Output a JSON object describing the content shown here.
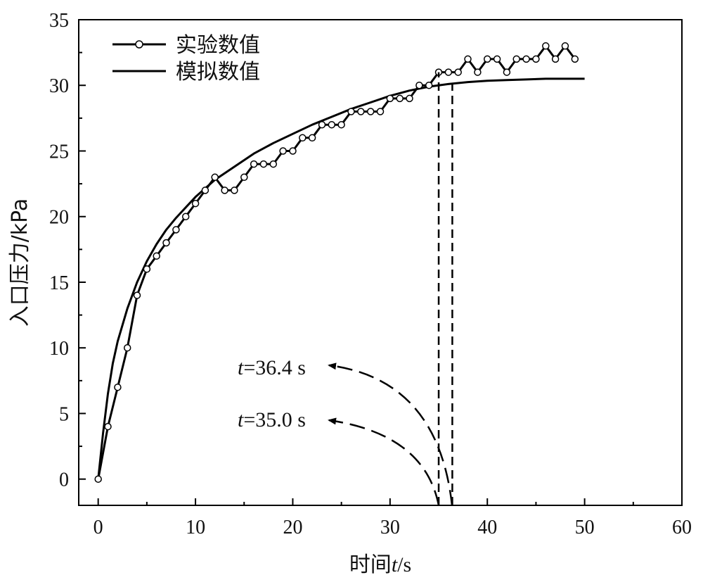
{
  "chart_data": {
    "type": "line",
    "xlabel_prefix": "时间",
    "xlabel_var": "t",
    "xlabel_suffix": "/s",
    "ylabel": "入口压力/kPa",
    "xlim": [
      -2,
      60
    ],
    "ylim": [
      -2,
      35
    ],
    "xticks": [
      0,
      10,
      20,
      30,
      40,
      50,
      60
    ],
    "yticks": [
      0,
      5,
      10,
      15,
      20,
      25,
      30,
      35
    ],
    "grid": false,
    "legend_position": "top-left",
    "series": [
      {
        "name": "实验数值",
        "marker": "open-circle",
        "x": [
          0,
          1,
          2,
          3,
          4,
          5,
          6,
          7,
          8,
          9,
          10,
          11,
          12,
          13,
          14,
          15,
          16,
          17,
          18,
          19,
          20,
          21,
          22,
          23,
          24,
          25,
          26,
          27,
          28,
          29,
          30,
          31,
          32,
          33,
          34,
          35,
          36,
          37,
          38,
          39,
          40,
          41,
          42,
          43,
          44,
          45,
          46,
          47,
          48,
          49
        ],
        "y": [
          0,
          4,
          7,
          10,
          14,
          16,
          17,
          18,
          19,
          20,
          21,
          22,
          23,
          22,
          22,
          23,
          24,
          24,
          24,
          25,
          25,
          26,
          26,
          27,
          27,
          27,
          28,
          28,
          28,
          28,
          29,
          29,
          29,
          30,
          30,
          31,
          31,
          31,
          32,
          31,
          32,
          32,
          31,
          32,
          32,
          32,
          33,
          32,
          33,
          32
        ]
      },
      {
        "name": "模拟数值",
        "marker": "none",
        "x": [
          0,
          0.5,
          1,
          1.5,
          2,
          3,
          4,
          5,
          6,
          7,
          8,
          10,
          12,
          14,
          16,
          18,
          20,
          22,
          24,
          26,
          28,
          30,
          32,
          34,
          36,
          38,
          40,
          42,
          44,
          46,
          48,
          50
        ],
        "y": [
          0,
          3.5,
          6.5,
          8.8,
          10.5,
          13.0,
          15.0,
          16.6,
          17.9,
          19.0,
          19.9,
          21.5,
          22.8,
          23.8,
          24.8,
          25.6,
          26.3,
          27.0,
          27.6,
          28.2,
          28.7,
          29.2,
          29.6,
          29.9,
          30.1,
          30.25,
          30.35,
          30.4,
          30.45,
          30.5,
          30.5,
          30.5
        ]
      }
    ],
    "markers_vertical": [
      35.0,
      36.4
    ],
    "annotations": [
      {
        "var": "t",
        "text": "=36.4 s",
        "x_target": 36.4
      },
      {
        "var": "t",
        "text": "=35.0 s",
        "x_target": 35.0
      }
    ]
  }
}
